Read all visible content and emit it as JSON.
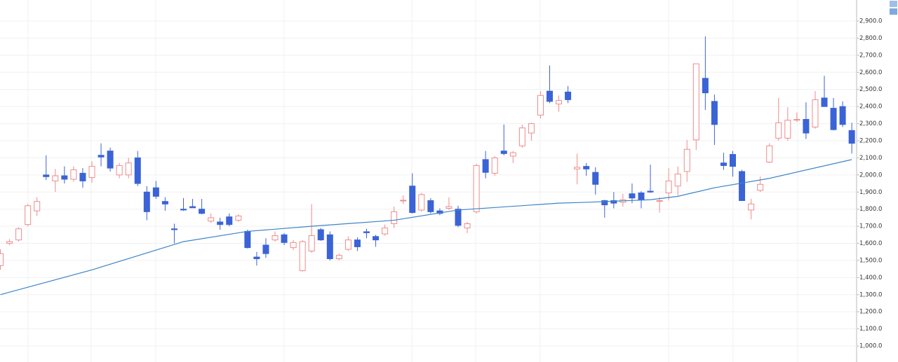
{
  "chart_data": {
    "type": "candlestick",
    "up_color": "#f08a8a",
    "down_color": "#3b63d6",
    "open": [
      1470,
      1600,
      1620,
      1710,
      1790,
      2000,
      1965,
      1995,
      1975,
      2010,
      1985,
      2115,
      2140,
      2000,
      2000,
      2100,
      1900,
      1925,
      1845,
      1685,
      1800,
      1815,
      1800,
      1730,
      1725,
      1755,
      1735,
      1670,
      1520,
      1590,
      1620,
      1650,
      1575,
      1440,
      1555,
      1680,
      1650,
      1510,
      1565,
      1620,
      1668,
      1640,
      1655,
      1715,
      1848,
      1935,
      1795,
      1850,
      1790,
      1805,
      1800,
      1690,
      1785,
      2090,
      2010,
      2140,
      2110,
      2170,
      2245,
      2350,
      2490,
      2415,
      2485,
      2035,
      2050,
      2015,
      1850,
      1850,
      1840,
      1890,
      1895,
      1905,
      1845,
      1895,
      1935,
      2020,
      2205,
      2565,
      2430,
      2070,
      2120,
      2020,
      1795,
      1910,
      2075,
      2215,
      2215,
      2320,
      2325,
      2280,
      2450,
      2390,
      2400,
      2260
    ],
    "high": [
      1565,
      1625,
      1695,
      1830,
      1870,
      2115,
      2035,
      2050,
      2050,
      2040,
      2080,
      2185,
      2160,
      2070,
      2100,
      2140,
      1935,
      1965,
      1870,
      1715,
      1865,
      1860,
      1860,
      1775,
      1750,
      1775,
      1770,
      1680,
      1550,
      1630,
      1670,
      1660,
      1620,
      1620,
      1830,
      1690,
      1670,
      1540,
      1640,
      1635,
      1685,
      1650,
      1710,
      1815,
      1880,
      2010,
      1895,
      1865,
      1805,
      1870,
      1820,
      1725,
      2065,
      2140,
      2110,
      2295,
      2140,
      2295,
      2305,
      2490,
      2640,
      2465,
      2520,
      2125,
      2070,
      2045,
      1855,
      1900,
      1890,
      1950,
      1905,
      2060,
      1870,
      2040,
      2050,
      2205,
      2650,
      2810,
      2470,
      2130,
      2140,
      2030,
      1860,
      1990,
      2185,
      2450,
      2395,
      2365,
      2425,
      2490,
      2580,
      2450,
      2430,
      2305
    ],
    "low": [
      1445,
      1590,
      1610,
      1700,
      1760,
      1970,
      1900,
      1950,
      1960,
      1925,
      1955,
      2050,
      2020,
      1980,
      1980,
      1935,
      1735,
      1860,
      1790,
      1600,
      1790,
      1810,
      1770,
      1720,
      1680,
      1700,
      1725,
      1570,
      1470,
      1515,
      1610,
      1590,
      1560,
      1435,
      1545,
      1615,
      1500,
      1500,
      1555,
      1555,
      1630,
      1580,
      1645,
      1690,
      1830,
      1775,
      1785,
      1775,
      1765,
      1795,
      1695,
      1660,
      1775,
      1980,
      1995,
      2115,
      2070,
      2160,
      2200,
      2330,
      2420,
      2370,
      2420,
      1945,
      1995,
      1885,
      1750,
      1805,
      1815,
      1835,
      1805,
      1895,
      1780,
      1850,
      1880,
      1960,
      2145,
      2380,
      2175,
      2030,
      1990,
      1850,
      1740,
      1900,
      2070,
      2200,
      2200,
      2310,
      2210,
      2270,
      2400,
      2260,
      2280,
      2125
    ],
    "close": [
      1540,
      1610,
      1685,
      1820,
      1845,
      1990,
      1995,
      1975,
      2030,
      1965,
      2050,
      2105,
      2040,
      2055,
      2070,
      1950,
      1785,
      1875,
      1830,
      1680,
      1795,
      1808,
      1775,
      1750,
      1710,
      1710,
      1760,
      1575,
      1510,
      1540,
      1645,
      1605,
      1605,
      1610,
      1645,
      1620,
      1510,
      1530,
      1620,
      1580,
      1662,
      1620,
      1690,
      1785,
      1852,
      1780,
      1885,
      1785,
      1775,
      1815,
      1705,
      1715,
      2055,
      2015,
      2100,
      2125,
      2130,
      2275,
      2300,
      2465,
      2430,
      2435,
      2440,
      2045,
      2035,
      1945,
      1825,
      1835,
      1855,
      1865,
      1855,
      1900,
      1850,
      1965,
      2005,
      2150,
      2650,
      2480,
      2295,
      2055,
      2050,
      1850,
      1830,
      1945,
      2170,
      2305,
      2320,
      2325,
      2245,
      2440,
      2400,
      2265,
      2295,
      2185
    ],
    "ma": {
      "color": "#3d84c6",
      "x": [
        0,
        10,
        20,
        27,
        34,
        43,
        50,
        61,
        64,
        71,
        74,
        78,
        84,
        93
      ],
      "values": [
        1300,
        1445,
        1610,
        1670,
        1700,
        1735,
        1795,
        1835,
        1840,
        1855,
        1875,
        1925,
        1980,
        2090
      ]
    },
    "ylim": [
      906.2,
      3023
    ],
    "yticks": [
      {
        "value": 1000,
        "label": "1,000.0"
      },
      {
        "value": 1100,
        "label": "1,100.0"
      },
      {
        "value": 1200,
        "label": "1,200.0"
      },
      {
        "value": 1300,
        "label": "1,300.0"
      },
      {
        "value": 1400,
        "label": "1,400.0"
      },
      {
        "value": 1500,
        "label": "1,500.0"
      },
      {
        "value": 1600,
        "label": "1,600.0"
      },
      {
        "value": 1700,
        "label": "1,700.0"
      },
      {
        "value": 1800,
        "label": "1,800.0"
      },
      {
        "value": 1900,
        "label": "1,900.0"
      },
      {
        "value": 2000,
        "label": "2,000.0"
      },
      {
        "value": 2100,
        "label": "2,100.0"
      },
      {
        "value": 2200,
        "label": "2,200.0"
      },
      {
        "value": 2300,
        "label": "2,300.0"
      },
      {
        "value": 2400,
        "label": "2,400.0"
      },
      {
        "value": 2500,
        "label": "2,500.0"
      },
      {
        "value": 2600,
        "label": "2,600.0"
      },
      {
        "value": 2700,
        "label": "2,700.0"
      },
      {
        "value": 2800,
        "label": "2,800.0"
      },
      {
        "value": 2900,
        "label": "2,900.0"
      }
    ],
    "grid": true
  }
}
